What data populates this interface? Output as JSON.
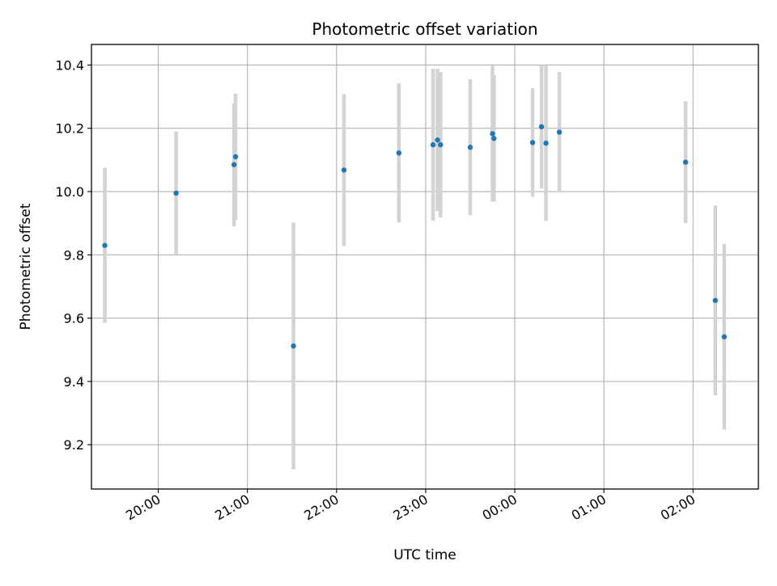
{
  "chart_data": {
    "type": "scatter",
    "title": "Photometric offset variation",
    "xlabel": "UTC time",
    "ylabel": "Photometric offset",
    "x_axis_kind": "time",
    "xlim": [
      "19:15",
      "26:44"
    ],
    "ylim": [
      9.06,
      10.465
    ],
    "grid": true,
    "x_ticks": [
      {
        "t": "20:00",
        "label": "20:00"
      },
      {
        "t": "21:00",
        "label": "21:00"
      },
      {
        "t": "22:00",
        "label": "22:00"
      },
      {
        "t": "23:00",
        "label": "23:00"
      },
      {
        "t": "24:00",
        "label": "00:00"
      },
      {
        "t": "25:00",
        "label": "01:00"
      },
      {
        "t": "26:00",
        "label": "02:00"
      }
    ],
    "y_ticks": [
      9.2,
      9.4,
      9.6,
      9.8,
      10.0,
      10.2,
      10.4
    ],
    "y_tick_labels": [
      "9.2",
      "9.4",
      "9.6",
      "9.8",
      "10.0",
      "10.2",
      "10.4"
    ],
    "marker_color": "#1f77b4",
    "errorbar_color": "#d3d3d3",
    "points": [
      {
        "t": "19:24",
        "y": 9.83,
        "err": 0.245
      },
      {
        "t": "20:12",
        "y": 9.995,
        "err": 0.195
      },
      {
        "t": "20:51",
        "y": 10.085,
        "err": 0.195
      },
      {
        "t": "20:52",
        "y": 10.11,
        "err": 0.2
      },
      {
        "t": "21:31",
        "y": 9.512,
        "err": 0.39
      },
      {
        "t": "22:05",
        "y": 10.068,
        "err": 0.24
      },
      {
        "t": "22:42",
        "y": 10.122,
        "err": 0.22
      },
      {
        "t": "23:05",
        "y": 10.148,
        "err": 0.24
      },
      {
        "t": "23:08",
        "y": 10.163,
        "err": 0.225
      },
      {
        "t": "23:10",
        "y": 10.148,
        "err": 0.23
      },
      {
        "t": "23:30",
        "y": 10.14,
        "err": 0.215
      },
      {
        "t": "23:45",
        "y": 10.183,
        "err": 0.215
      },
      {
        "t": "23:46",
        "y": 10.168,
        "err": 0.2
      },
      {
        "t": "24:12",
        "y": 10.155,
        "err": 0.172
      },
      {
        "t": "24:18",
        "y": 10.205,
        "err": 0.195
      },
      {
        "t": "24:21",
        "y": 10.153,
        "err": 0.245
      },
      {
        "t": "24:30",
        "y": 10.188,
        "err": 0.19
      },
      {
        "t": "25:55",
        "y": 10.093,
        "err": 0.193
      },
      {
        "t": "26:15",
        "y": 9.656,
        "err": 0.3
      },
      {
        "t": "26:21",
        "y": 9.541,
        "err": 0.293
      }
    ]
  }
}
